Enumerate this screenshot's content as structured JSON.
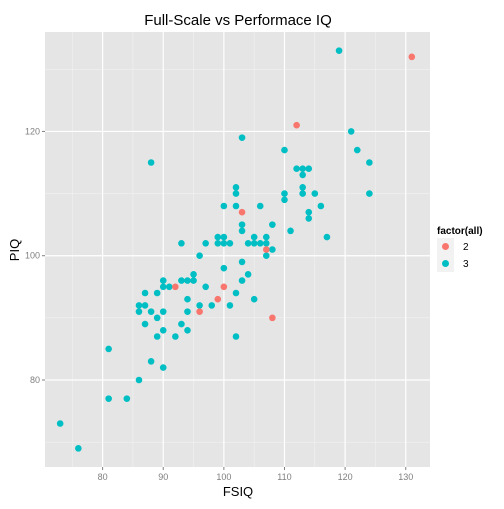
{
  "colors": {
    "panel": "#E5E5E5",
    "grid_major": "#FFFFFF",
    "grid_minor": "#F2F2F2",
    "tick_text": "#7F7F7F",
    "text": "#000000",
    "series_2": "#F8766D",
    "series_3": "#00BFC4"
  },
  "chart_data": {
    "type": "scatter",
    "title": "Full-Scale vs Performace IQ",
    "xlabel": "FSIQ",
    "ylabel": "PIQ",
    "xlim": [
      70.5,
      134
    ],
    "ylim": [
      66,
      136
    ],
    "x_ticks": [
      80,
      90,
      100,
      110,
      120,
      130
    ],
    "y_ticks": [
      80,
      100,
      120
    ],
    "grid": true,
    "legend": {
      "title": "factor(all)",
      "position": "right",
      "entries": [
        "2",
        "3"
      ]
    },
    "series": [
      {
        "name": "2",
        "color": "#F8766D",
        "points": [
          [
            92,
            95
          ],
          [
            96,
            91
          ],
          [
            99,
            93
          ],
          [
            100,
            95
          ],
          [
            103,
            107
          ],
          [
            107,
            101
          ],
          [
            108,
            90
          ],
          [
            112,
            121
          ],
          [
            131,
            132
          ]
        ]
      },
      {
        "name": "3",
        "color": "#00BFC4",
        "points": [
          [
            73,
            73
          ],
          [
            76,
            69
          ],
          [
            81,
            85
          ],
          [
            81,
            77
          ],
          [
            84,
            77
          ],
          [
            86,
            80
          ],
          [
            86,
            92
          ],
          [
            86,
            91
          ],
          [
            87,
            92
          ],
          [
            87,
            94
          ],
          [
            87,
            89
          ],
          [
            88,
            91
          ],
          [
            88,
            83
          ],
          [
            88,
            115
          ],
          [
            89,
            90
          ],
          [
            89,
            87
          ],
          [
            89,
            94
          ],
          [
            90,
            96
          ],
          [
            90,
            95
          ],
          [
            90,
            91
          ],
          [
            90,
            88
          ],
          [
            90,
            82
          ],
          [
            91,
            95
          ],
          [
            92,
            87
          ],
          [
            93,
            96
          ],
          [
            93,
            89
          ],
          [
            93,
            102
          ],
          [
            94,
            96
          ],
          [
            94,
            93
          ],
          [
            94,
            91
          ],
          [
            94,
            88
          ],
          [
            95,
            97
          ],
          [
            95,
            96
          ],
          [
            96,
            100
          ],
          [
            96,
            92
          ],
          [
            97,
            102
          ],
          [
            97,
            95
          ],
          [
            98,
            92
          ],
          [
            99,
            103
          ],
          [
            99,
            102
          ],
          [
            100,
            103
          ],
          [
            100,
            102
          ],
          [
            100,
            98
          ],
          [
            100,
            108
          ],
          [
            101,
            102
          ],
          [
            101,
            92
          ],
          [
            102,
            111
          ],
          [
            102,
            110
          ],
          [
            102,
            108
          ],
          [
            102,
            94
          ],
          [
            102,
            87
          ],
          [
            103,
            119
          ],
          [
            103,
            105
          ],
          [
            103,
            104
          ],
          [
            103,
            99
          ],
          [
            103,
            96
          ],
          [
            104,
            102
          ],
          [
            104,
            97
          ],
          [
            105,
            102
          ],
          [
            105,
            93
          ],
          [
            105,
            103
          ],
          [
            106,
            108
          ],
          [
            106,
            102
          ],
          [
            107,
            103
          ],
          [
            107,
            102
          ],
          [
            107,
            100
          ],
          [
            108,
            105
          ],
          [
            108,
            101
          ],
          [
            110,
            117
          ],
          [
            110,
            109
          ],
          [
            110,
            110
          ],
          [
            111,
            104
          ],
          [
            112,
            114
          ],
          [
            113,
            114
          ],
          [
            113,
            113
          ],
          [
            113,
            111
          ],
          [
            113,
            110
          ],
          [
            114,
            114
          ],
          [
            114,
            107
          ],
          [
            114,
            106
          ],
          [
            115,
            110
          ],
          [
            116,
            108
          ],
          [
            117,
            103
          ],
          [
            119,
            133
          ],
          [
            121,
            120
          ],
          [
            122,
            117
          ],
          [
            124,
            115
          ],
          [
            124,
            110
          ]
        ]
      }
    ]
  }
}
